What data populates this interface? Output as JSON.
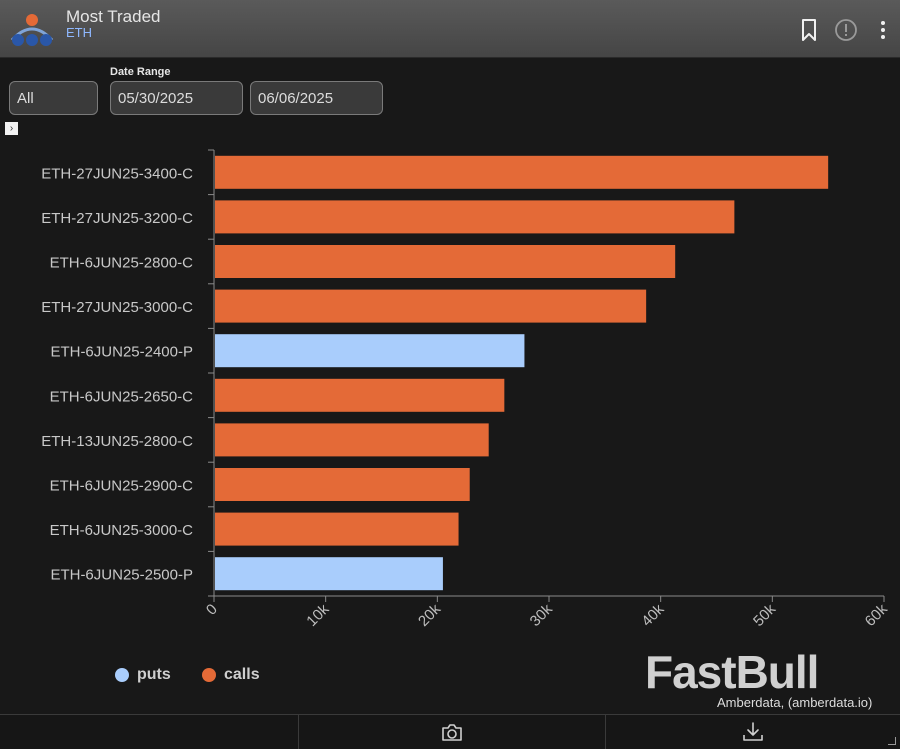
{
  "header": {
    "title": "Most Traded",
    "subtitle": "ETH",
    "icons": [
      "bookmark-icon",
      "alert-icon",
      "more-vertical-icon"
    ]
  },
  "filters": {
    "type_value": "All",
    "date_range_label": "Date Range",
    "start_date": "05/30/2025",
    "end_date": "06/06/2025"
  },
  "colors": {
    "calls": "#e46a37",
    "puts": "#a9cdfc"
  },
  "chart_data": {
    "type": "bar",
    "orientation": "horizontal",
    "categories": [
      "ETH-27JUN25-3400-C",
      "ETH-27JUN25-3200-C",
      "ETH-6JUN25-2800-C",
      "ETH-27JUN25-3000-C",
      "ETH-6JUN25-2400-P",
      "ETH-6JUN25-2650-C",
      "ETH-13JUN25-2800-C",
      "ETH-6JUN25-2900-C",
      "ETH-6JUN25-3000-C",
      "ETH-6JUN25-2500-P"
    ],
    "values": [
      55000,
      46600,
      41300,
      38700,
      27800,
      26000,
      24600,
      22900,
      21900,
      20500
    ],
    "bar_series": [
      "calls",
      "calls",
      "calls",
      "calls",
      "puts",
      "calls",
      "calls",
      "calls",
      "calls",
      "puts"
    ],
    "series_names": [
      "puts",
      "calls"
    ],
    "xlim": [
      0,
      60000
    ],
    "xticks": [
      "0",
      "10k",
      "20k",
      "30k",
      "40k",
      "50k",
      "60k"
    ],
    "legend_position": "bottom-left"
  },
  "watermark": "FastBull",
  "credit": "Amberdata, (amberdata.io)",
  "footer": {
    "icons": [
      "camera-icon",
      "download-icon"
    ]
  }
}
